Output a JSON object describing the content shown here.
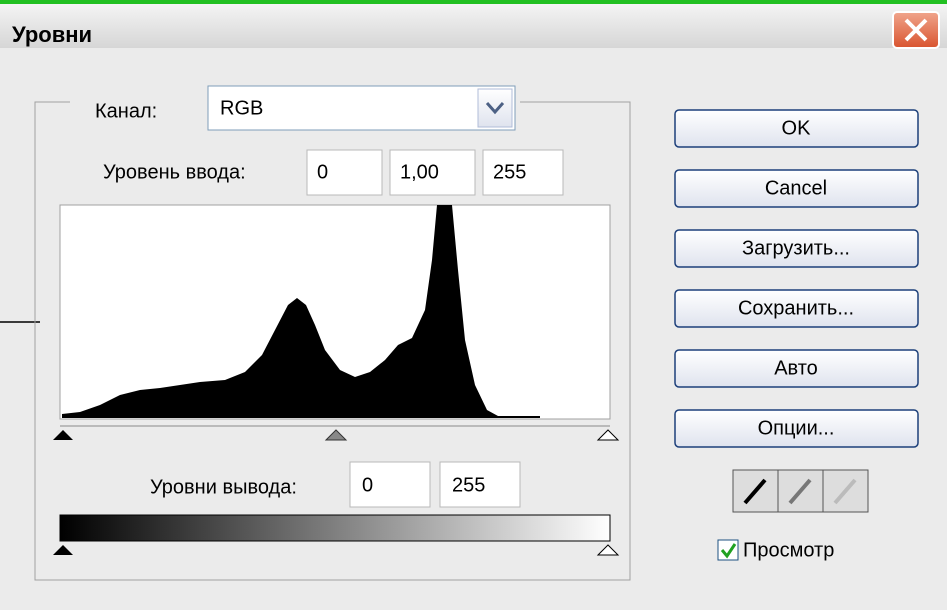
{
  "window": {
    "title": "Уровни"
  },
  "channel": {
    "label": "Канал:",
    "value": "RGB"
  },
  "input_levels": {
    "label": "Уровень ввода:",
    "values": [
      "0",
      "1,00",
      "255"
    ]
  },
  "output_levels": {
    "label": "Уровни вывода:",
    "values": [
      "0",
      "255"
    ]
  },
  "buttons": [
    "OK",
    "Cancel",
    "Загрузить...",
    "Сохранить...",
    "Авто",
    "Опции..."
  ],
  "preview": {
    "label": "Просмотр"
  }
}
